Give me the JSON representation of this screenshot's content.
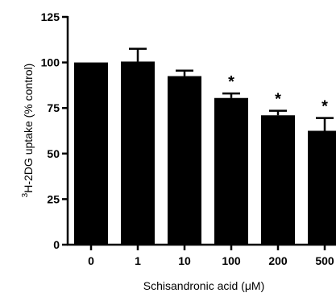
{
  "chart_data": {
    "type": "bar",
    "categories": [
      "0",
      "1",
      "10",
      "100",
      "200",
      "500"
    ],
    "values": [
      100,
      100.5,
      92.5,
      80.5,
      71,
      62.5
    ],
    "error": [
      0,
      7,
      3,
      2.5,
      2.5,
      7
    ],
    "significance": [
      "",
      "",
      "",
      "*",
      "*",
      "*"
    ],
    "ylim": [
      0,
      125
    ],
    "yticks": [
      0,
      25,
      50,
      75,
      100,
      125
    ],
    "xlabel": {
      "prefix": "Schisandronic acid (",
      "unit_greek": "μ",
      "unit_rest": "M)"
    },
    "ylabel": {
      "superscript": "3",
      "main": "H-2DG uptake (% control)"
    },
    "bar_color": "#000000",
    "grid": false
  }
}
